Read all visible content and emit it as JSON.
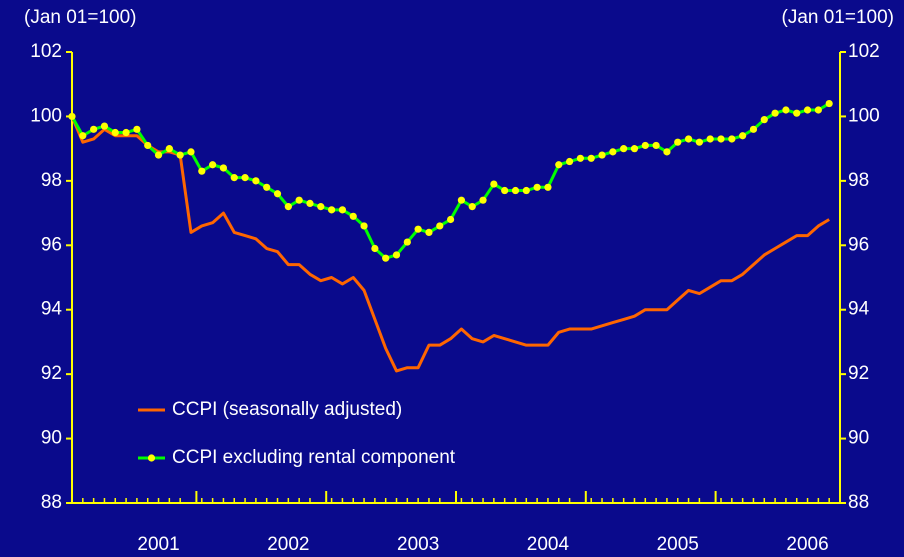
{
  "chart_data": {
    "type": "line",
    "ylabel": "(Jan 01=100)",
    "y2label": "(Jan 01=100)",
    "categories": [
      null,
      null,
      null,
      null,
      null,
      null,
      null,
      null,
      "2001",
      null,
      null,
      null,
      null,
      null,
      null,
      null,
      null,
      null,
      null,
      null,
      "2002",
      null,
      null,
      null,
      null,
      null,
      null,
      null,
      null,
      null,
      null,
      null,
      "2003",
      null,
      null,
      null,
      null,
      null,
      null,
      null,
      null,
      null,
      null,
      null,
      "2004",
      null,
      null,
      null,
      null,
      null,
      null,
      null,
      null,
      null,
      null,
      null,
      "2005",
      null,
      null,
      null,
      null,
      null,
      null,
      null,
      null,
      null,
      null,
      null,
      "2006",
      null,
      null
    ],
    "series": [
      {
        "name": "CCPI (seasonally adjusted)",
        "color": "#ff6600",
        "values": [
          100,
          99.2,
          99.3,
          99.6,
          99.4,
          99.4,
          99.4,
          99.1,
          98.9,
          98.9,
          98.8,
          96.4,
          96.6,
          96.7,
          97.0,
          96.4,
          96.3,
          96.2,
          95.9,
          95.8,
          95.4,
          95.4,
          95.1,
          94.9,
          95.0,
          94.8,
          95.0,
          94.6,
          93.7,
          92.8,
          92.1,
          92.2,
          92.2,
          92.9,
          92.9,
          93.1,
          93.4,
          93.1,
          93.0,
          93.2,
          93.1,
          93.0,
          92.9,
          92.9,
          92.9,
          93.3,
          93.4,
          93.4,
          93.4,
          93.5,
          93.6,
          93.7,
          93.8,
          94.0,
          94.0,
          94.0,
          94.3,
          94.6,
          94.5,
          94.7,
          94.9,
          94.9,
          95.1,
          95.4,
          95.7,
          95.9,
          96.1,
          96.3,
          96.3,
          96.6,
          96.8
        ]
      },
      {
        "name": "CCPI excluding rental component",
        "color": "#00ff00",
        "marker_color": "#ffff00",
        "values": [
          100.0,
          99.4,
          99.6,
          99.7,
          99.5,
          99.5,
          99.6,
          99.1,
          98.8,
          99.0,
          98.8,
          98.9,
          98.3,
          98.5,
          98.4,
          98.1,
          98.1,
          98.0,
          97.8,
          97.6,
          97.2,
          97.4,
          97.3,
          97.2,
          97.1,
          97.1,
          96.9,
          96.6,
          95.9,
          95.6,
          95.7,
          96.1,
          96.5,
          96.4,
          96.6,
          96.8,
          97.4,
          97.2,
          97.4,
          97.9,
          97.7,
          97.7,
          97.7,
          97.8,
          97.8,
          98.5,
          98.6,
          98.7,
          98.7,
          98.8,
          98.9,
          99.0,
          99.0,
          99.1,
          99.1,
          98.9,
          99.2,
          99.3,
          99.2,
          99.3,
          99.3,
          99.3,
          99.4,
          99.6,
          99.9,
          100.1,
          100.2,
          100.1,
          100.2,
          100.2,
          100.4
        ]
      }
    ],
    "ylim": [
      88,
      102
    ],
    "yticks": [
      88,
      90,
      92,
      94,
      96,
      98,
      100,
      102
    ],
    "y2lim": [
      88,
      102
    ],
    "y2ticks": [
      88,
      90,
      92,
      94,
      96,
      98,
      100,
      102
    ],
    "axis_color": "#ffff00",
    "background": "#0a0a8c"
  }
}
